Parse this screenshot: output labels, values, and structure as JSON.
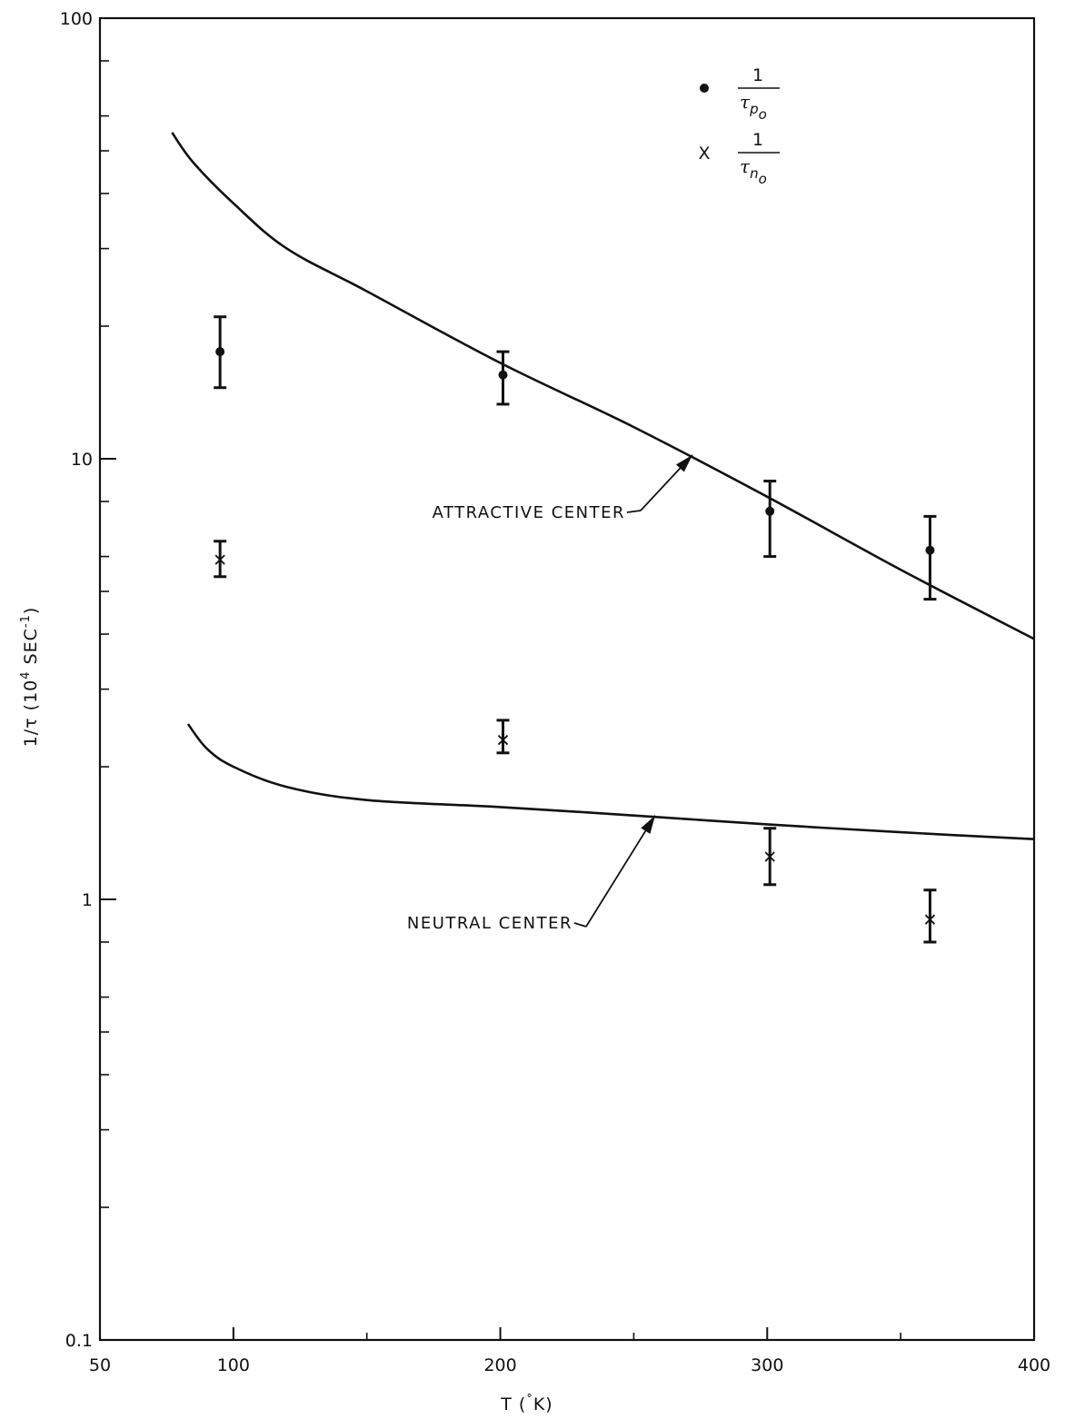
{
  "chart_data": {
    "type": "scatter",
    "title": "",
    "xlabel": {
      "main": "T (",
      "deg": "°",
      "unit": "K)"
    },
    "ylabel": {
      "main": "1/τ (10",
      "exp": "4",
      "unit": " SEC",
      "exp2": "-1",
      "close": ")"
    },
    "x_scale": "linear",
    "y_scale": "log",
    "xlim": [
      50,
      400
    ],
    "ylim": [
      0.1,
      100
    ],
    "x_ticks": [
      50,
      100,
      200,
      300,
      400
    ],
    "x_minor_ticks": [
      150,
      250,
      350
    ],
    "y_ticks": [
      0.1,
      1,
      10,
      100
    ],
    "x_tick_labels": [
      "50",
      "100",
      "200",
      "300",
      "400"
    ],
    "y_tick_labels": [
      "0.1",
      "1",
      "10",
      "100"
    ],
    "grid": false,
    "legend": {
      "position": "top-right",
      "entries": [
        {
          "marker": "dot",
          "marker_label": "",
          "numerator": "1",
          "symbol": "τ",
          "sub": "p",
          "subsub": "o"
        },
        {
          "marker": "x",
          "marker_label": "X",
          "numerator": "1",
          "symbol": "τ",
          "sub": "n",
          "subsub": "o"
        }
      ]
    },
    "series": [
      {
        "name": "1/τp0",
        "marker": "dot",
        "points": [
          {
            "x": 95,
            "y": 17.5,
            "ylow": 14.5,
            "yhigh": 21
          },
          {
            "x": 201,
            "y": 15.5,
            "ylow": 13.3,
            "yhigh": 17.5
          },
          {
            "x": 301,
            "y": 7.6,
            "ylow": 6.0,
            "yhigh": 8.9
          },
          {
            "x": 361,
            "y": 6.2,
            "ylow": 4.8,
            "yhigh": 7.4
          }
        ]
      },
      {
        "name": "1/τn0",
        "marker": "x",
        "points": [
          {
            "x": 95,
            "y": 5.9,
            "ylow": 5.4,
            "yhigh": 6.5
          },
          {
            "x": 201,
            "y": 2.3,
            "ylow": 2.15,
            "yhigh": 2.55
          },
          {
            "x": 301,
            "y": 1.25,
            "ylow": 1.08,
            "yhigh": 1.45
          },
          {
            "x": 361,
            "y": 0.9,
            "ylow": 0.8,
            "yhigh": 1.05
          }
        ]
      }
    ],
    "curves": [
      {
        "label": "ATTRACTIVE CENTER",
        "points": [
          [
            77,
            55
          ],
          [
            85,
            47
          ],
          [
            100,
            38
          ],
          [
            120,
            30
          ],
          [
            150,
            24
          ],
          [
            200,
            16.5
          ],
          [
            250,
            11.8
          ],
          [
            300,
            8.2
          ],
          [
            350,
            5.6
          ],
          [
            400,
            3.9
          ]
        ]
      },
      {
        "label": "NEUTRAL CENTER",
        "points": [
          [
            83,
            2.5
          ],
          [
            90,
            2.2
          ],
          [
            100,
            2.0
          ],
          [
            120,
            1.8
          ],
          [
            150,
            1.68
          ],
          [
            200,
            1.62
          ],
          [
            250,
            1.55
          ],
          [
            300,
            1.48
          ],
          [
            350,
            1.42
          ],
          [
            400,
            1.37
          ]
        ]
      }
    ],
    "annotations": [
      {
        "text": "ATTRACTIVE CENTER",
        "arrow_to_x": 272,
        "arrow_to_y": 10.2
      },
      {
        "text": "NEUTRAL CENTER",
        "arrow_to_x": 258,
        "arrow_to_y": 1.55
      }
    ]
  }
}
